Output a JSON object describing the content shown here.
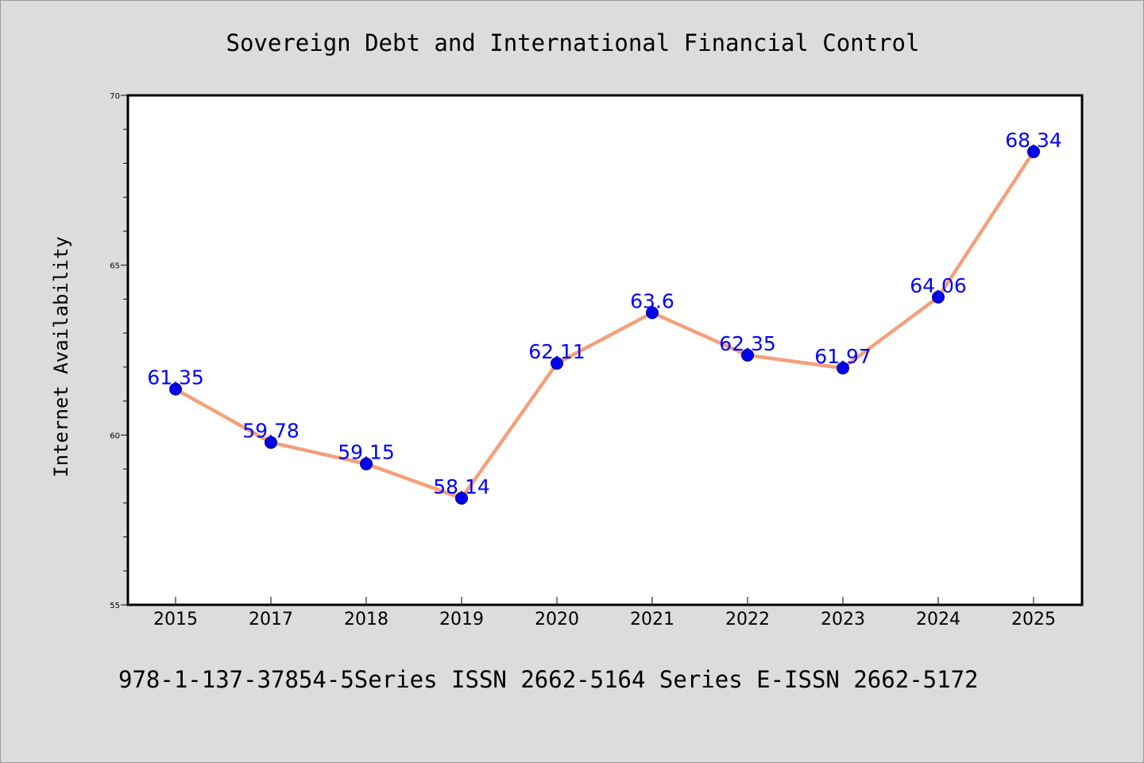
{
  "chart_data": {
    "type": "line",
    "title": "Sovereign Debt and International Financial Control",
    "xlabel": "",
    "ylabel": "Internet Availability",
    "categories": [
      "2015",
      "2017",
      "2018",
      "2019",
      "2020",
      "2021",
      "2022",
      "2023",
      "2024",
      "2025"
    ],
    "values": [
      61.35,
      59.78,
      59.15,
      58.14,
      62.11,
      63.6,
      62.35,
      61.97,
      64.06,
      68.34
    ],
    "data_labels": [
      "61.35",
      "59.78",
      "59.15",
      "58.14",
      "62.11",
      "63.6",
      "62.35",
      "61.97",
      "64.06",
      "68.34"
    ],
    "ylim": [
      55,
      70
    ],
    "y_major_ticks": [
      55,
      60,
      65,
      70
    ],
    "y_major_tick_labels": [
      "55",
      "60",
      "65",
      "70"
    ],
    "y_minor_step": 1,
    "grid": false,
    "line_color": "#f4a07c",
    "marker_color": "#0000ee",
    "label_color": "#0000ff",
    "background_color": "#dcdcdc",
    "plot_background_color": "#ffffff"
  },
  "footer": {
    "text": "978-1-137-37854-5Series ISSN 2662-5164 Series E-ISSN 2662-5172"
  }
}
